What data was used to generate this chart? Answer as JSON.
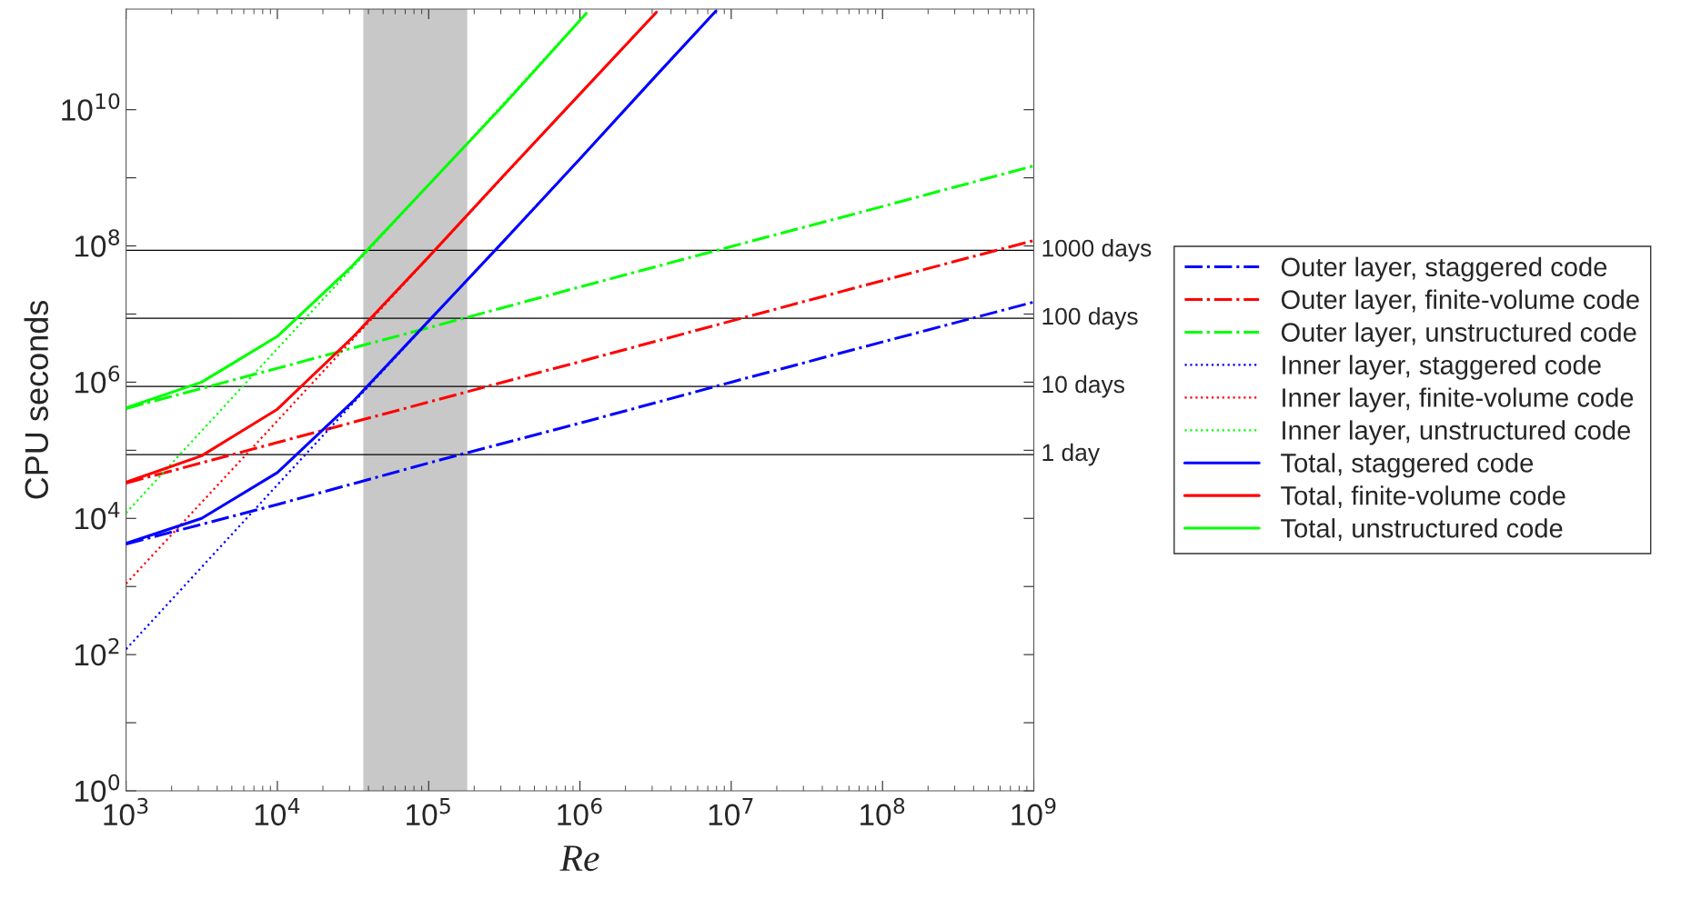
{
  "chart_data": {
    "type": "line",
    "xlabel": "Re",
    "ylabel": "CPU seconds",
    "log": "xy",
    "xlim": [
      1000,
      1000000000
    ],
    "ylim": [
      1,
      300000000000
    ],
    "xticks": [
      {
        "value": 1000,
        "label": "10$^{3}$"
      },
      {
        "value": 10000,
        "label": "10$^{4}$"
      },
      {
        "value": 100000,
        "label": "10$^{5}$"
      },
      {
        "value": 1000000,
        "label": "10$^{6}$"
      },
      {
        "value": 10000000,
        "label": "10$^{7}$"
      },
      {
        "value": 100000000,
        "label": "10$^{8}$"
      },
      {
        "value": 1000000000,
        "label": "10$^{9}$"
      }
    ],
    "yticks": [
      {
        "value": 1,
        "label": "10$^{0}$"
      },
      {
        "value": 10,
        "label": null
      },
      {
        "value": 100,
        "label": "10$^{2}$"
      },
      {
        "value": 1000,
        "label": null
      },
      {
        "value": 10000,
        "label": "10$^{4}$"
      },
      {
        "value": 100000,
        "label": null
      },
      {
        "value": 1000000,
        "label": "10$^{6}$"
      },
      {
        "value": 10000000,
        "label": null
      },
      {
        "value": 100000000,
        "label": "10$^{8}$"
      },
      {
        "value": 1000000000,
        "label": null
      },
      {
        "value": 10000000000,
        "label": "10$^{10}$"
      }
    ],
    "grid": false,
    "legend": "right",
    "marker": "none",
    "bands": [
      {
        "axis": "x",
        "from": 37000,
        "to": 180000,
        "color": "#c8c8c8"
      }
    ],
    "ref_lines": [
      {
        "axis": "y",
        "value": 86400,
        "label": "1 day",
        "color": "#000000",
        "line_style": "solid"
      },
      {
        "axis": "y",
        "value": 864000,
        "label": "10 days",
        "color": "#000000",
        "line_style": "solid"
      },
      {
        "axis": "y",
        "value": 8640000,
        "label": "100 days",
        "color": "#000000",
        "line_style": "solid"
      },
      {
        "axis": "y",
        "value": 86400000,
        "label": "1000 days",
        "color": "#000000",
        "line_style": "solid"
      }
    ],
    "series": [
      {
        "name": "Outer layer, staggered code",
        "color": "#0000ff",
        "line_style": "dashdot",
        "x": [
          1000,
          10000,
          100000,
          1000000,
          10000000,
          100000000,
          1000000000
        ],
        "values": [
          4200,
          16000,
          65000,
          250000,
          1000000,
          3900000,
          15000000
        ]
      },
      {
        "name": "Outer layer, finite-volume code",
        "color": "#ff0000",
        "line_style": "dashdot",
        "x": [
          1000,
          10000,
          100000,
          1000000,
          10000000,
          100000000,
          1000000000
        ],
        "values": [
          33000,
          130000,
          510000,
          2000000,
          7900000,
          31000000,
          120000000
        ]
      },
      {
        "name": "Outer layer, unstructured code",
        "color": "#00ff00",
        "line_style": "dashdot",
        "x": [
          1000,
          10000,
          100000,
          1000000,
          10000000,
          100000000,
          1000000000
        ],
        "values": [
          410000,
          1600000,
          6300000,
          25000000,
          98000000,
          380000000,
          1500000000
        ]
      },
      {
        "name": "Inner layer, staggered code",
        "color": "#0000ff",
        "line_style": "dotted",
        "x": [
          1000,
          10000,
          100000,
          1000000,
          7900000
        ],
        "values": [
          120,
          31000,
          7800000,
          1900000000,
          280000000000
        ]
      },
      {
        "name": "Inner layer, finite-volume code",
        "color": "#ff0000",
        "line_style": "dotted",
        "x": [
          1000,
          10000,
          100000,
          1000000,
          3200000
        ],
        "values": [
          1100,
          270000,
          68000000,
          17000000000,
          270000000000
        ]
      },
      {
        "name": "Inner layer, unstructured code",
        "color": "#00ff00",
        "line_style": "dotted",
        "x": [
          1000,
          10000,
          100000,
          1100000
        ],
        "values": [
          12000,
          3100000,
          780000000,
          260000000000
        ]
      },
      {
        "name": "Total, staggered code",
        "color": "#0000ff",
        "line_style": "solid",
        "x": [
          1000,
          3160,
          10000,
          31600,
          100000,
          316000,
          1000000,
          3160000,
          7900000
        ],
        "values": [
          4300,
          10000,
          47000,
          520000,
          7900000,
          120000000,
          1900000000,
          31000000000,
          280000000000
        ]
      },
      {
        "name": "Total, finite-volume code",
        "color": "#ff0000",
        "line_style": "solid",
        "x": [
          1000,
          3160,
          10000,
          31600,
          100000,
          316000,
          1000000,
          3200000
        ],
        "values": [
          34000,
          83000,
          400000,
          4600000,
          69000000,
          1100000000,
          17000000000,
          270000000000
        ]
      },
      {
        "name": "Total, unstructured code",
        "color": "#00ff00",
        "line_style": "solid",
        "x": [
          1000,
          3160,
          10000,
          31600,
          100000,
          316000,
          1100000
        ],
        "values": [
          420000,
          1000000,
          4700000,
          52000000,
          790000000,
          12000000000,
          260000000000
        ]
      }
    ]
  }
}
